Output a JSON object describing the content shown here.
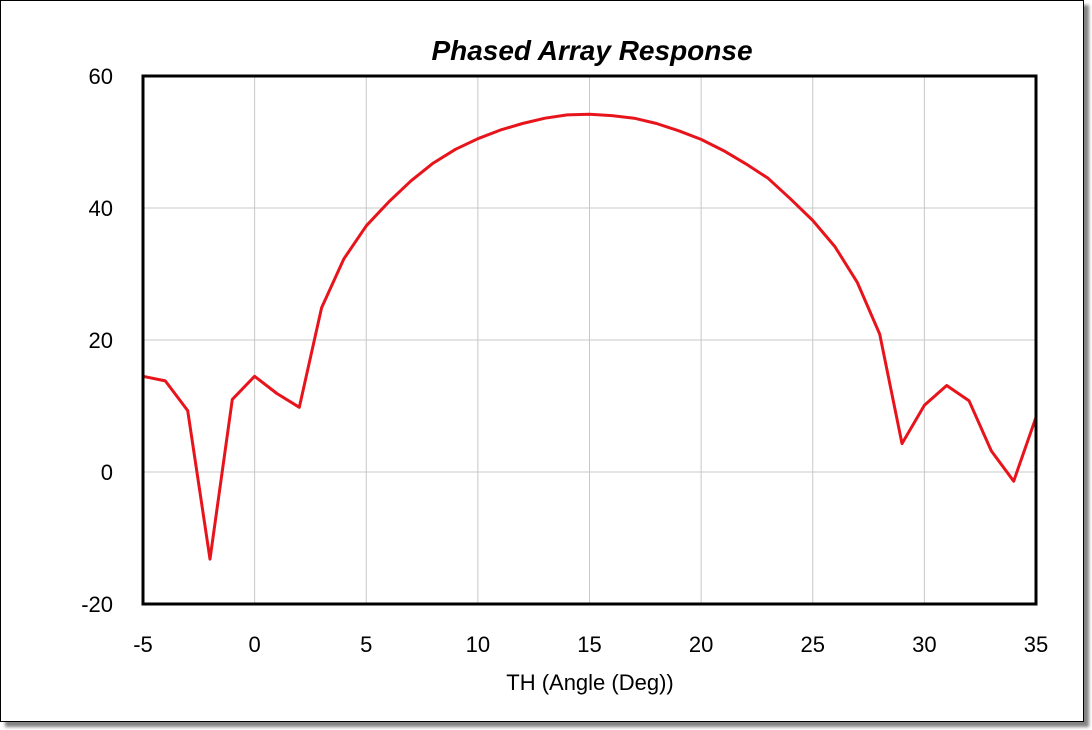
{
  "chart_data": {
    "type": "line",
    "title": "Phased Array Response",
    "xlabel": "TH (Angle (Deg))",
    "ylabel": "",
    "xlim": [
      -5,
      35
    ],
    "ylim": [
      -20,
      60
    ],
    "x_ticks": [
      "-5",
      "0",
      "5",
      "10",
      "15",
      "20",
      "25",
      "30",
      "35"
    ],
    "y_ticks": [
      "60",
      "40",
      "20",
      "0",
      "-20"
    ],
    "grid": true,
    "legend": "none",
    "series": [
      {
        "color": "#e8141c",
        "x": [
          -5,
          -4,
          -3,
          -2,
          -1,
          0,
          1,
          2,
          3,
          4,
          5,
          6,
          7,
          8,
          9,
          10,
          11,
          12,
          13,
          14,
          15,
          16,
          17,
          18,
          19,
          20,
          21,
          22,
          23,
          24,
          25,
          26,
          27,
          28,
          29,
          30,
          31,
          32,
          33,
          34,
          35
        ],
        "y": [
          14.5,
          13.8,
          9.3,
          -13.2,
          11,
          14.5,
          11.9,
          9.8,
          24.9,
          32.3,
          37.3,
          40.9,
          44.1,
          46.8,
          48.9,
          50.5,
          51.8,
          52.8,
          53.6,
          54.1,
          54.2,
          54.0,
          53.6,
          52.8,
          51.7,
          50.4,
          48.7,
          46.7,
          44.5,
          41.4,
          38.1,
          34.1,
          28.7,
          20.9,
          4.3,
          10.1,
          13.1,
          10.8,
          3.2,
          -1.4,
          8.3
        ]
      }
    ]
  }
}
